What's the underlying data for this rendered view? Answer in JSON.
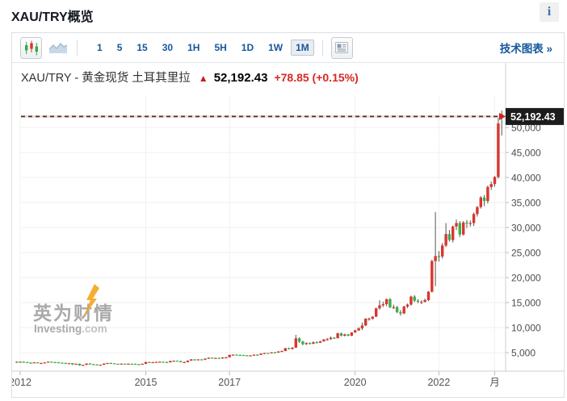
{
  "page": {
    "title": "XAU/TRY概览",
    "info_icon": "i"
  },
  "toolbar": {
    "chart_type_buttons": [
      {
        "name": "candlestick",
        "selected": true
      },
      {
        "name": "area",
        "selected": false
      }
    ],
    "timeframes": [
      "1",
      "5",
      "15",
      "30",
      "1H",
      "5H",
      "1D",
      "1W",
      "1M"
    ],
    "selected_timeframe": "1M",
    "news_button": "news-panel-icon",
    "link_label": "技术图表 »"
  },
  "quote": {
    "name": "XAU/TRY - 黄金现货 土耳其里拉",
    "arrow_glyph": "▲",
    "price": "52,192.43",
    "change": "+78.85 (+0.15%)"
  },
  "watermark": {
    "line1": "英为财情",
    "line2": "Investing",
    "line2_suffix": ".com"
  },
  "colors": {
    "accent_blue": "#15579e",
    "up_candle": "#da352e",
    "down_candle": "#3aaf4a",
    "change_red": "#d42a22",
    "price_label_bg": "#1c1c1c",
    "price_line_dash": "#46322f",
    "price_line_underlay": "#f5dcd7",
    "watermark_orange": "#f5a623",
    "grid": "#efefef"
  },
  "chart_data": {
    "type": "candlestick",
    "title": "XAU/TRY - 黄金现货 土耳其里拉",
    "current_price": 52192.43,
    "up_means": "red (Chinese convention)",
    "grid": true,
    "ylim": [
      1300,
      55000
    ],
    "y_axis_ticks": [
      5000,
      10000,
      15000,
      20000,
      25000,
      30000,
      35000,
      40000,
      45000,
      50000
    ],
    "x_axis_ticks": [
      {
        "label": "2012",
        "at": "2012-01"
      },
      {
        "label": "2015",
        "at": "2015-01"
      },
      {
        "label": "2017",
        "at": "2017-01"
      },
      {
        "label": "2020",
        "at": "2020-01"
      },
      {
        "label": "2022",
        "at": "2022-01"
      },
      {
        "label": "月",
        "at": "2023-05"
      }
    ],
    "columns": [
      "month",
      "open",
      "high",
      "low",
      "close"
    ],
    "candles": [
      [
        "2011-12",
        3180,
        3260,
        2950,
        3060
      ],
      [
        "2012-01",
        3060,
        3230,
        3010,
        3180
      ],
      [
        "2012-02",
        3180,
        3260,
        3090,
        3140
      ],
      [
        "2012-03",
        3140,
        3160,
        2940,
        2990
      ],
      [
        "2012-04",
        2990,
        3070,
        2930,
        2960
      ],
      [
        "2012-05",
        2960,
        3100,
        2890,
        3060
      ],
      [
        "2012-06",
        3060,
        3090,
        2870,
        2900
      ],
      [
        "2012-07",
        2900,
        2990,
        2860,
        2930
      ],
      [
        "2012-08",
        2930,
        3060,
        2890,
        3040
      ],
      [
        "2012-09",
        3040,
        3230,
        3020,
        3190
      ],
      [
        "2012-10",
        3190,
        3220,
        3050,
        3100
      ],
      [
        "2012-11",
        3100,
        3160,
        3040,
        3080
      ],
      [
        "2012-12",
        3080,
        3110,
        2960,
        2990
      ],
      [
        "2013-01",
        2990,
        3050,
        2900,
        2950
      ],
      [
        "2013-02",
        2950,
        2990,
        2800,
        2840
      ],
      [
        "2013-03",
        2840,
        2930,
        2810,
        2890
      ],
      [
        "2013-04",
        2890,
        2910,
        2540,
        2640
      ],
      [
        "2013-05",
        2640,
        2810,
        2570,
        2790
      ],
      [
        "2013-06",
        2790,
        2820,
        2380,
        2430
      ],
      [
        "2013-07",
        2430,
        2590,
        2350,
        2550
      ],
      [
        "2013-08",
        2550,
        2870,
        2520,
        2810
      ],
      [
        "2013-09",
        2810,
        2890,
        2630,
        2700
      ],
      [
        "2013-10",
        2700,
        2760,
        2580,
        2650
      ],
      [
        "2013-11",
        2650,
        2680,
        2480,
        2530
      ],
      [
        "2013-12",
        2530,
        2620,
        2440,
        2580
      ],
      [
        "2014-01",
        2580,
        2870,
        2560,
        2820
      ],
      [
        "2014-02",
        2820,
        2960,
        2740,
        2930
      ],
      [
        "2014-03",
        2930,
        3000,
        2820,
        2860
      ],
      [
        "2014-04",
        2860,
        2890,
        2720,
        2760
      ],
      [
        "2014-05",
        2760,
        2800,
        2620,
        2650
      ],
      [
        "2014-06",
        2650,
        2820,
        2610,
        2800
      ],
      [
        "2014-07",
        2800,
        2830,
        2700,
        2740
      ],
      [
        "2014-08",
        2740,
        2810,
        2690,
        2780
      ],
      [
        "2014-09",
        2780,
        2820,
        2700,
        2760
      ],
      [
        "2014-10",
        2760,
        2810,
        2610,
        2680
      ],
      [
        "2014-11",
        2680,
        2740,
        2560,
        2630
      ],
      [
        "2014-12",
        2630,
        2810,
        2590,
        2760
      ],
      [
        "2015-01",
        2760,
        3170,
        2740,
        3130
      ],
      [
        "2015-02",
        3130,
        3180,
        2960,
        3030
      ],
      [
        "2015-03",
        3030,
        3160,
        2950,
        3090
      ],
      [
        "2015-04",
        3090,
        3190,
        3010,
        3150
      ],
      [
        "2015-05",
        3150,
        3230,
        3090,
        3190
      ],
      [
        "2015-06",
        3190,
        3220,
        3080,
        3120
      ],
      [
        "2015-07",
        3120,
        3190,
        2990,
        3050
      ],
      [
        "2015-08",
        3050,
        3390,
        3020,
        3310
      ],
      [
        "2015-09",
        3310,
        3430,
        3250,
        3380
      ],
      [
        "2015-10",
        3380,
        3420,
        3230,
        3320
      ],
      [
        "2015-11",
        3320,
        3370,
        3050,
        3090
      ],
      [
        "2015-12",
        3090,
        3180,
        3020,
        3100
      ],
      [
        "2016-01",
        3100,
        3440,
        3080,
        3400
      ],
      [
        "2016-02",
        3400,
        3700,
        3360,
        3650
      ],
      [
        "2016-03",
        3650,
        3680,
        3440,
        3500
      ],
      [
        "2016-04",
        3500,
        3690,
        3440,
        3650
      ],
      [
        "2016-05",
        3650,
        3700,
        3510,
        3590
      ],
      [
        "2016-06",
        3590,
        3850,
        3520,
        3810
      ],
      [
        "2016-07",
        3810,
        4040,
        3750,
        4000
      ],
      [
        "2016-08",
        4000,
        4050,
        3840,
        3880
      ],
      [
        "2016-09",
        3880,
        4000,
        3830,
        3950
      ],
      [
        "2016-10",
        3950,
        3990,
        3820,
        3910
      ],
      [
        "2016-11",
        3910,
        4100,
        3770,
        4030
      ],
      [
        "2016-12",
        4030,
        4130,
        3950,
        4060
      ],
      [
        "2017-01",
        4060,
        4590,
        4040,
        4550
      ],
      [
        "2017-02",
        4550,
        4650,
        4420,
        4600
      ],
      [
        "2017-03",
        4600,
        4660,
        4440,
        4540
      ],
      [
        "2017-04",
        4540,
        4620,
        4440,
        4520
      ],
      [
        "2017-05",
        4520,
        4580,
        4400,
        4470
      ],
      [
        "2017-06",
        4470,
        4510,
        4330,
        4370
      ],
      [
        "2017-07",
        4370,
        4490,
        4280,
        4460
      ],
      [
        "2017-08",
        4460,
        4640,
        4410,
        4590
      ],
      [
        "2017-09",
        4590,
        4690,
        4480,
        4560
      ],
      [
        "2017-10",
        4560,
        4850,
        4510,
        4820
      ],
      [
        "2017-11",
        4820,
        4960,
        4720,
        4930
      ],
      [
        "2017-12",
        4930,
        4950,
        4760,
        4910
      ],
      [
        "2018-01",
        4910,
        5100,
        4830,
        5050
      ],
      [
        "2018-02",
        5050,
        5160,
        4940,
        5010
      ],
      [
        "2018-03",
        5010,
        5290,
        4960,
        5230
      ],
      [
        "2018-04",
        5230,
        5410,
        5140,
        5330
      ],
      [
        "2018-05",
        5330,
        5970,
        5290,
        5880
      ],
      [
        "2018-06",
        5880,
        6010,
        5650,
        5740
      ],
      [
        "2018-07",
        5740,
        6110,
        5600,
        5990
      ],
      [
        "2018-08",
        5990,
        8560,
        5950,
        7870
      ],
      [
        "2018-09",
        7870,
        8060,
        6940,
        7210
      ],
      [
        "2018-10",
        7210,
        7400,
        6500,
        6690
      ],
      [
        "2018-11",
        6690,
        7020,
        6550,
        6910
      ],
      [
        "2018-12",
        6910,
        7040,
        6660,
        6780
      ],
      [
        "2019-01",
        6780,
        7230,
        6710,
        7080
      ],
      [
        "2019-02",
        7080,
        7260,
        6890,
        6980
      ],
      [
        "2019-03",
        6980,
        7350,
        6920,
        7270
      ],
      [
        "2019-04",
        7270,
        7700,
        7180,
        7640
      ],
      [
        "2019-05",
        7640,
        7920,
        7390,
        7690
      ],
      [
        "2019-06",
        7690,
        8210,
        7560,
        7970
      ],
      [
        "2019-07",
        7970,
        8110,
        7760,
        7900
      ],
      [
        "2019-08",
        7900,
        8990,
        7850,
        8860
      ],
      [
        "2019-09",
        8860,
        9000,
        8250,
        8380
      ],
      [
        "2019-10",
        8380,
        8800,
        8230,
        8640
      ],
      [
        "2019-11",
        8640,
        8720,
        8280,
        8380
      ],
      [
        "2019-12",
        8380,
        9080,
        8300,
        9030
      ],
      [
        "2020-01",
        9030,
        9600,
        8930,
        9440
      ],
      [
        "2020-02",
        9440,
        10100,
        9330,
        9870
      ],
      [
        "2020-03",
        9870,
        11000,
        9530,
        10430
      ],
      [
        "2020-04",
        10430,
        11900,
        10300,
        11780
      ],
      [
        "2020-05",
        11780,
        12000,
        11370,
        11790
      ],
      [
        "2020-06",
        11790,
        12300,
        11560,
        12190
      ],
      [
        "2020-07",
        12190,
        14000,
        12120,
        13850
      ],
      [
        "2020-08",
        13850,
        15480,
        13600,
        14460
      ],
      [
        "2020-09",
        14460,
        15200,
        14100,
        14680
      ],
      [
        "2020-10",
        14680,
        15800,
        14300,
        15690
      ],
      [
        "2020-11",
        15690,
        15900,
        13900,
        14080
      ],
      [
        "2020-12",
        14080,
        14600,
        13700,
        14100
      ],
      [
        "2021-01",
        14100,
        14350,
        12900,
        13090
      ],
      [
        "2021-02",
        13090,
        13500,
        12400,
        12830
      ],
      [
        "2021-03",
        12830,
        14400,
        12700,
        14200
      ],
      [
        "2021-04",
        14200,
        14800,
        13900,
        14610
      ],
      [
        "2021-05",
        14610,
        16400,
        14400,
        16200
      ],
      [
        "2021-06",
        16200,
        16500,
        15100,
        15370
      ],
      [
        "2021-07",
        15370,
        15700,
        14900,
        15140
      ],
      [
        "2021-08",
        15140,
        15500,
        14700,
        15140
      ],
      [
        "2021-09",
        15140,
        15800,
        15000,
        15500
      ],
      [
        "2021-10",
        15500,
        17300,
        15300,
        17190
      ],
      [
        "2021-11",
        17190,
        23600,
        17000,
        23300
      ],
      [
        "2021-12",
        23300,
        33100,
        18300,
        24300
      ],
      [
        "2022-01",
        24300,
        25300,
        23200,
        24200
      ],
      [
        "2022-02",
        24200,
        26900,
        23800,
        26400
      ],
      [
        "2022-03",
        26400,
        30900,
        26100,
        28700
      ],
      [
        "2022-04",
        28700,
        29500,
        27200,
        27500
      ],
      [
        "2022-05",
        27500,
        30400,
        27000,
        30200
      ],
      [
        "2022-06",
        30200,
        31600,
        29500,
        30900
      ],
      [
        "2022-07",
        30900,
        31300,
        28100,
        28600
      ],
      [
        "2022-08",
        28600,
        31300,
        28400,
        31000
      ],
      [
        "2022-09",
        31000,
        31500,
        29900,
        30800
      ],
      [
        "2022-10",
        30800,
        31400,
        30200,
        30900
      ],
      [
        "2022-11",
        30900,
        33000,
        30300,
        32700
      ],
      [
        "2022-12",
        32700,
        34300,
        32200,
        34100
      ],
      [
        "2023-01",
        34100,
        36300,
        33800,
        36000
      ],
      [
        "2023-02",
        36000,
        36500,
        34300,
        35300
      ],
      [
        "2023-03",
        35300,
        38400,
        34800,
        38100
      ],
      [
        "2023-04",
        38100,
        39200,
        37500,
        38700
      ],
      [
        "2023-05",
        38700,
        40300,
        38200,
        40100
      ],
      [
        "2023-06",
        40100,
        51900,
        39800,
        50800
      ],
      [
        "2023-07",
        52700,
        53400,
        48400,
        52192.43
      ]
    ]
  }
}
